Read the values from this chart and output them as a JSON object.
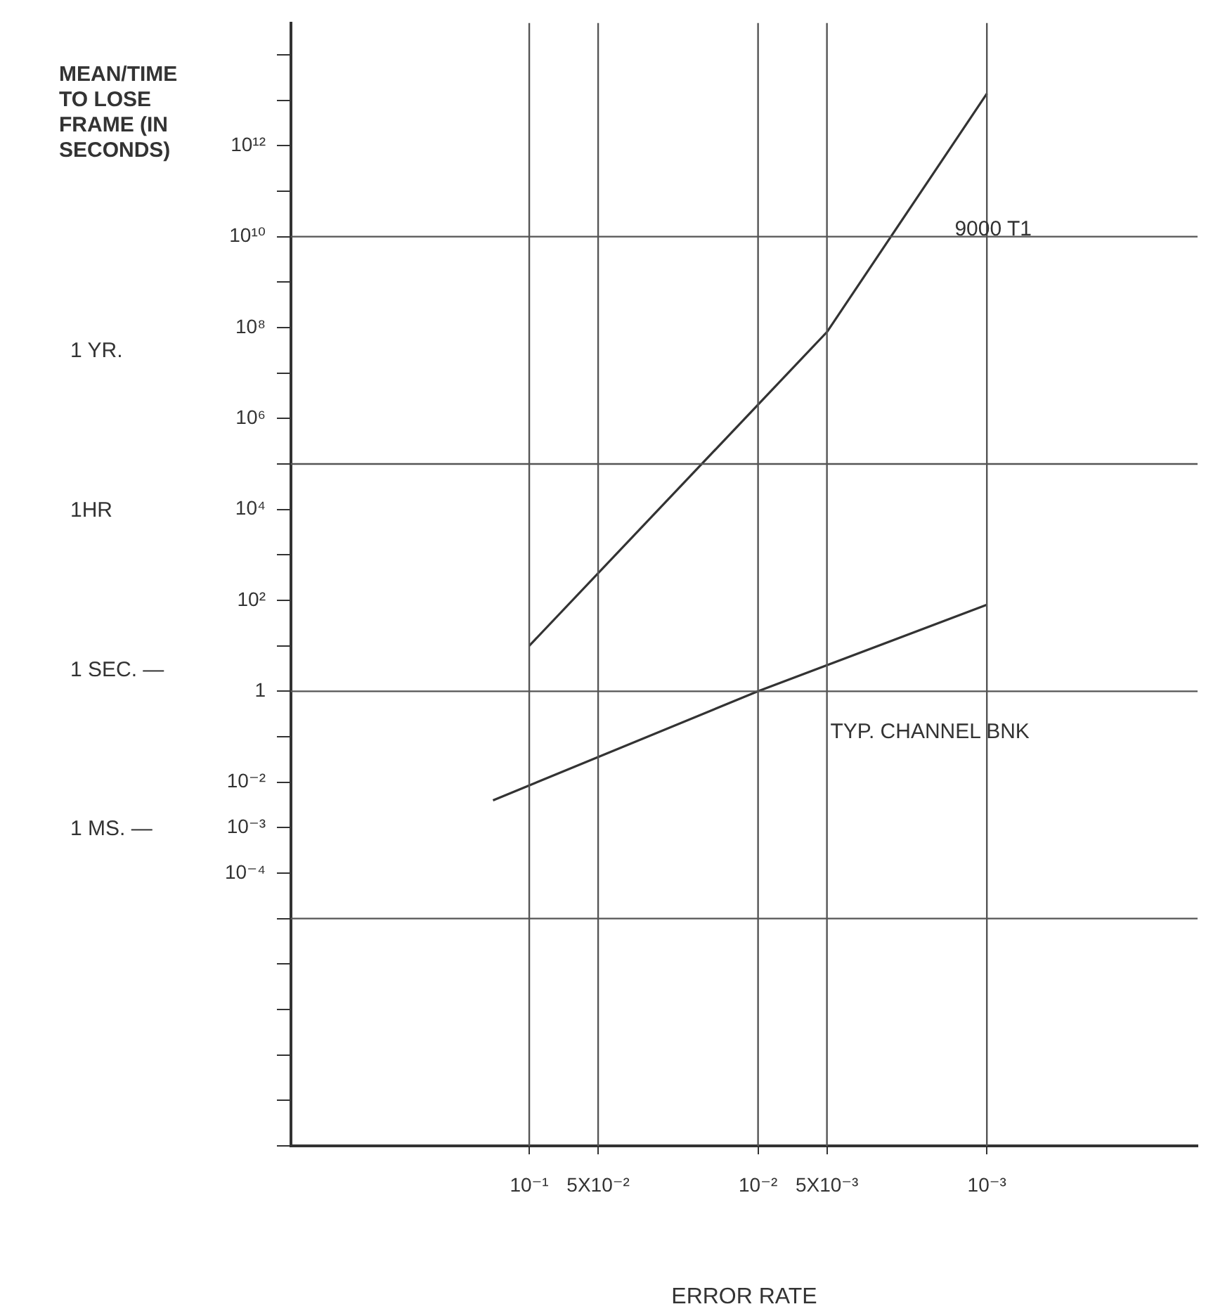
{
  "chart_data": {
    "type": "line",
    "ylabel": "MEAN/TIME TO LOSE FRAME (IN SECONDS)",
    "xlabel": "ERROR RATE",
    "log": "xy",
    "grid": false,
    "legend": false,
    "marker": "none",
    "line_style": "solid",
    "xlim": [
      1.1,
      0.00012
    ],
    "xticks": [
      {
        "value": 0.1,
        "label": "10⁻¹"
      },
      {
        "value": 0.05,
        "label": "5X10⁻²"
      },
      {
        "value": 0.01,
        "label": "10⁻²"
      },
      {
        "value": 0.005,
        "label": "5X10⁻³"
      },
      {
        "value": 0.001,
        "label": "10⁻³"
      }
    ],
    "ylim": [
      1e-10,
      500000000000000.0
    ],
    "yticks": [
      {
        "value": 100000000000000.0,
        "label": null
      },
      {
        "value": 10000000000000.0,
        "label": null
      },
      {
        "value": 1000000000000.0,
        "label": "10¹²"
      },
      {
        "value": 100000000000.0,
        "label": null
      },
      {
        "value": 10000000000.0,
        "label": "10¹⁰"
      },
      {
        "value": 1000000000.0,
        "label": null
      },
      {
        "value": 100000000.0,
        "label": "10⁸"
      },
      {
        "value": 10000000.0,
        "label": null
      },
      {
        "value": 1000000.0,
        "label": "10⁶"
      },
      {
        "value": 100000.0,
        "label": null
      },
      {
        "value": 10000.0,
        "label": "10⁴"
      },
      {
        "value": 1000.0,
        "label": null
      },
      {
        "value": 100,
        "label": "10²"
      },
      {
        "value": 10,
        "label": null
      },
      {
        "value": 1,
        "label": "1"
      },
      {
        "value": 0.1,
        "label": null
      },
      {
        "value": 0.01,
        "label": "10⁻²"
      },
      {
        "value": 0.001,
        "label": "10⁻³"
      },
      {
        "value": 0.0001,
        "label": "10⁻⁴"
      },
      {
        "value": 1e-05,
        "label": null
      },
      {
        "value": 1e-06,
        "label": null
      },
      {
        "value": 1e-07,
        "label": null
      },
      {
        "value": 1e-08,
        "label": null
      },
      {
        "value": 1e-09,
        "label": null
      },
      {
        "value": 1e-10,
        "label": null
      }
    ],
    "series": [
      {
        "name": "9000 T1",
        "color": "#333333",
        "x": [
          0.1,
          0.005,
          0.001
        ],
        "values": [
          10,
          80000000.0,
          14000000000000.0
        ]
      },
      {
        "name": "TYP. CHANNEL BNK",
        "color": "#333333",
        "x": [
          0.144,
          0.01,
          0.001
        ],
        "values": [
          0.004,
          1,
          80
        ]
      }
    ],
    "ref_lines": [
      {
        "axis": "y",
        "value": 10000000000.0,
        "color": "#555555"
      },
      {
        "axis": "y",
        "value": 100000.0,
        "color": "#555555"
      },
      {
        "axis": "y",
        "value": 1,
        "color": "#555555"
      },
      {
        "axis": "y",
        "value": 1e-05,
        "color": "#555555"
      },
      {
        "axis": "x",
        "value": 0.1,
        "color": "#555555"
      },
      {
        "axis": "x",
        "value": 0.05,
        "color": "#555555"
      },
      {
        "axis": "x",
        "value": 0.01,
        "color": "#555555"
      },
      {
        "axis": "x",
        "value": 0.005,
        "color": "#555555"
      },
      {
        "axis": "x",
        "value": 0.001,
        "color": "#555555"
      }
    ],
    "annotations": [
      "1 YR.",
      "1HR",
      "1 SEC. —",
      "1 MS. —"
    ]
  }
}
